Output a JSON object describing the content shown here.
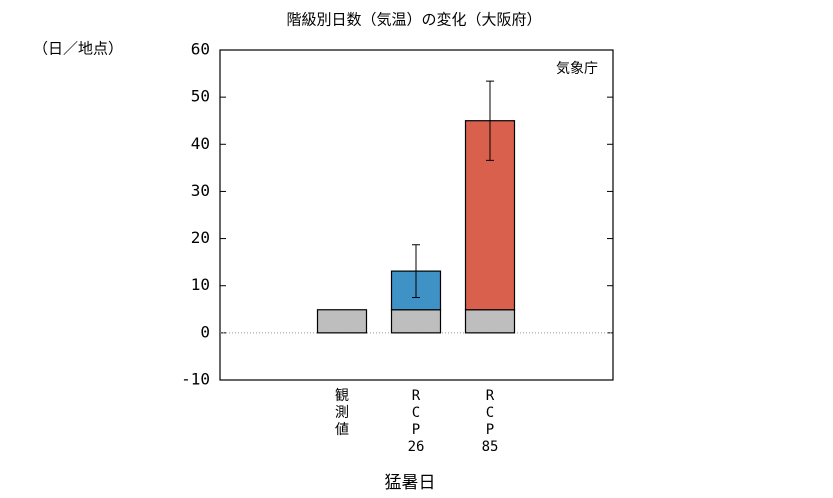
{
  "chart_data": {
    "type": "stacked-bar",
    "title": "階級別日数（気温）の変化（大阪府）",
    "y_label": "（日／地点）",
    "annotation": "気象庁",
    "x_label": "猛暑日",
    "categories": [
      [
        "観",
        "測",
        "値"
      ],
      [
        "R",
        "C",
        "P",
        "26"
      ],
      [
        "R",
        "C",
        "P",
        "85"
      ]
    ],
    "series": [
      {
        "color": "#bebebe",
        "values": [
          4.9,
          4.9,
          4.9
        ]
      },
      {
        "color": [
          "#3e92c6",
          "#d9604c"
        ],
        "values": [
          null,
          8.2,
          40.1
        ],
        "errors": [
          null,
          5.6,
          8.4
        ]
      }
    ],
    "ylim": [
      -10,
      60
    ],
    "yticks": [
      -10,
      0,
      10,
      20,
      30,
      40,
      50,
      60
    ]
  }
}
